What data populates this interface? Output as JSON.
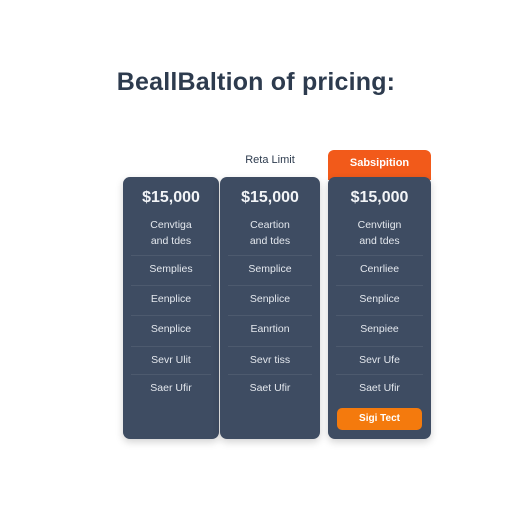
{
  "title": "BeallBaltion of pricing:",
  "plans": [
    {
      "price": "$15,000",
      "description": [
        "Cenvtiga",
        "and tdes"
      ],
      "features": [
        "Semplies",
        "Eenplice",
        "Senplice",
        "Sevr Ulit",
        "Saer Ufir"
      ]
    },
    {
      "label": "Reta Limit",
      "price": "$15,000",
      "description": [
        "Ceartion",
        "and tdes"
      ],
      "features": [
        "Semplice",
        "Senplice",
        "Eanrtion",
        "Sevr tiss",
        "Saet Ufir"
      ]
    },
    {
      "tab": "Sabsipition",
      "price": "$15,000",
      "description": [
        "Cenvtiign",
        "and tdes"
      ],
      "features": [
        "Cenrliee",
        "Senplice",
        "Senpiee",
        "Sevr Ufe",
        "Saet Ufir"
      ],
      "button": "Sigi Tect"
    }
  ]
}
